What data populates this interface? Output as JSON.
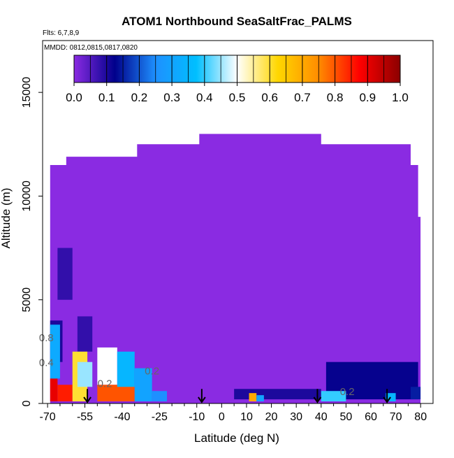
{
  "chart_data": {
    "type": "heatmap",
    "title": "ATOM1 Northbound SeaSaltFrac_PALMS",
    "subtitle_flights": "Flts: 6,7,8,9",
    "subtitle_dates": "MMDD: 0812,0815,0817,0820",
    "xlabel": "Latitude (deg N)",
    "ylabel": "Altitude (m)",
    "xlim": [
      -72,
      85
    ],
    "ylim": [
      0,
      17500
    ],
    "x_ticks": [
      -70,
      -55,
      -40,
      -25,
      -10,
      0,
      10,
      20,
      30,
      40,
      50,
      60,
      70,
      80
    ],
    "y_ticks": [
      0,
      5000,
      10000,
      15000
    ],
    "colorbar": {
      "range": [
        0.0,
        1.0
      ],
      "ticks": [
        "0.0",
        "0.1",
        "0.2",
        "0.3",
        "0.4",
        "0.5",
        "0.6",
        "0.7",
        "0.8",
        "0.9",
        "1.0"
      ],
      "colors": [
        "#8a2be2",
        "#00008b",
        "#1e90ff",
        "#00bfff",
        "#ffffff",
        "#ffd700",
        "#ff8c00",
        "#ff0000",
        "#8b0000"
      ]
    },
    "contour_labels": [
      {
        "text": "0.4",
        "x": -70.5,
        "y": 1800
      },
      {
        "text": "0.8",
        "x": -70.5,
        "y": 3000
      },
      {
        "text": "0.2",
        "x": -47,
        "y": 800
      },
      {
        "text": "0.2",
        "x": -28,
        "y": 1400
      },
      {
        "text": "0.2",
        "x": 50.5,
        "y": 400
      }
    ],
    "profile_markers_lat": [
      -54,
      -8,
      38.5,
      66.5
    ],
    "data_envelope": [
      {
        "lat0": -69,
        "lat1": -62.5,
        "alt_top": 11500
      },
      {
        "lat0": -62.5,
        "lat1": -51,
        "alt_top": 11900
      },
      {
        "lat0": -51,
        "lat1": -34,
        "alt_top": 11900
      },
      {
        "lat0": -34,
        "lat1": -9,
        "alt_top": 12500
      },
      {
        "lat0": -9,
        "lat1": 40,
        "alt_top": 13000
      },
      {
        "lat0": 40,
        "lat1": 76,
        "alt_top": 12500
      },
      {
        "lat0": 76,
        "lat1": 79,
        "alt_top": 11500
      },
      {
        "lat0": 79,
        "lat1": 80,
        "alt_top": 9000
      }
    ],
    "regions": [
      {
        "lat0": -69,
        "lat1": 80,
        "alt0": 0,
        "alt1": 13000,
        "value": 0.0
      },
      {
        "lat0": -66,
        "lat1": -60,
        "alt0": 5000,
        "alt1": 7500,
        "value": 0.08
      },
      {
        "lat0": -69,
        "lat1": -64,
        "alt0": 2000,
        "alt1": 4000,
        "value": 0.1
      },
      {
        "lat0": -58,
        "lat1": -52,
        "alt0": 2500,
        "alt1": 4200,
        "value": 0.08
      },
      {
        "lat0": 42,
        "lat1": 79,
        "alt0": 200,
        "alt1": 2000,
        "value": 0.12
      },
      {
        "lat0": 5,
        "lat1": 40,
        "alt0": 200,
        "alt1": 700,
        "value": 0.1
      },
      {
        "lat0": -69,
        "lat1": -65,
        "alt0": 1200,
        "alt1": 3800,
        "value": 0.32
      },
      {
        "lat0": -69,
        "lat1": -66,
        "alt0": 100,
        "alt1": 1200,
        "value": 0.9
      },
      {
        "lat0": -66,
        "lat1": -60,
        "alt0": 100,
        "alt1": 900,
        "value": 0.85
      },
      {
        "lat0": -60,
        "lat1": -54,
        "alt0": 100,
        "alt1": 2500,
        "value": 0.6
      },
      {
        "lat0": -58,
        "lat1": -52,
        "alt0": 800,
        "alt1": 2000,
        "value": 0.45
      },
      {
        "lat0": -50,
        "lat1": -42,
        "alt0": 900,
        "alt1": 2700,
        "value": 0.5
      },
      {
        "lat0": -50,
        "lat1": -35,
        "alt0": 100,
        "alt1": 900,
        "value": 0.8
      },
      {
        "lat0": -42,
        "lat1": -35,
        "alt0": 800,
        "alt1": 2500,
        "value": 0.35
      },
      {
        "lat0": -35,
        "lat1": -28,
        "alt0": 100,
        "alt1": 1700,
        "value": 0.3
      },
      {
        "lat0": -28,
        "lat1": -22,
        "alt0": 100,
        "alt1": 600,
        "value": 0.25
      },
      {
        "lat0": 11,
        "lat1": 14,
        "alt0": 100,
        "alt1": 500,
        "value": 0.7
      },
      {
        "lat0": 14,
        "lat1": 17,
        "alt0": 100,
        "alt1": 400,
        "value": 0.3
      },
      {
        "lat0": 40,
        "lat1": 50,
        "alt0": 100,
        "alt1": 600,
        "value": 0.4
      },
      {
        "lat0": 66,
        "lat1": 70,
        "alt0": 100,
        "alt1": 500,
        "value": 0.35
      },
      {
        "lat0": 76,
        "lat1": 80,
        "alt0": 200,
        "alt1": 800,
        "value": 0.15
      }
    ]
  }
}
